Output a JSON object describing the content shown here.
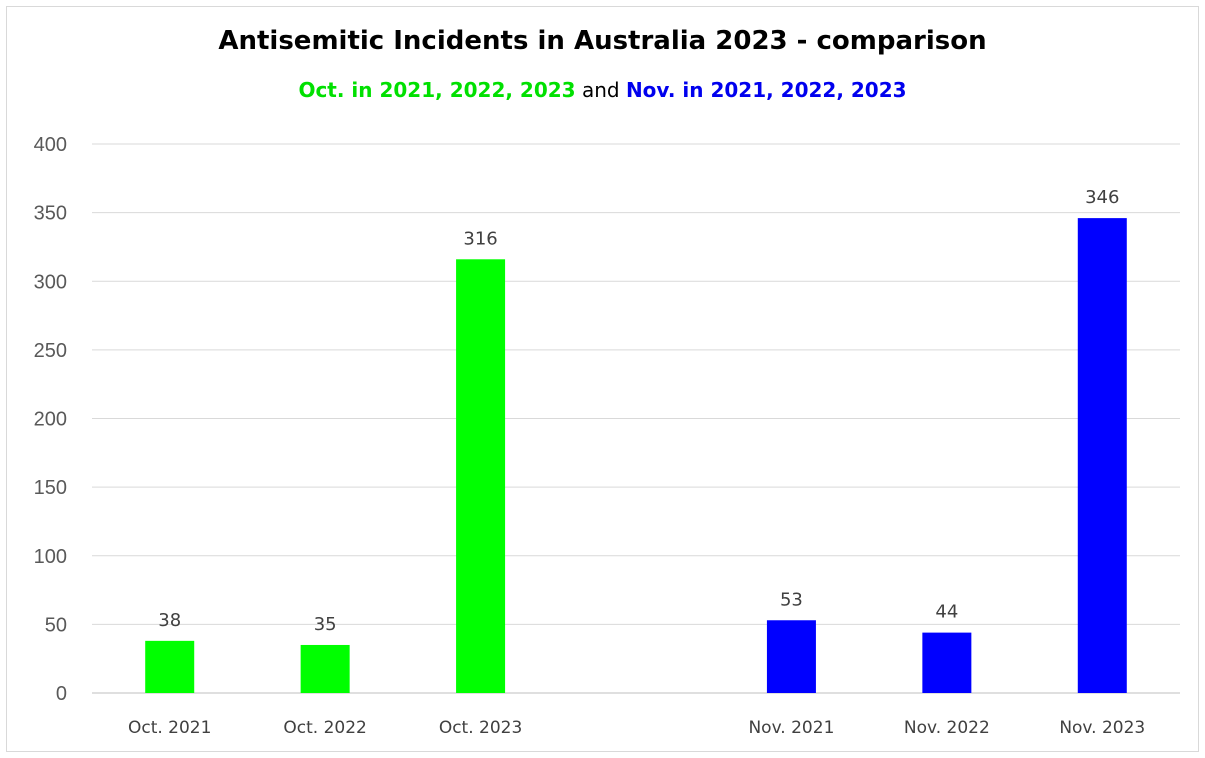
{
  "chart_data": {
    "type": "bar",
    "title": "Antisemitic Incidents in Australia 2023 - comparison",
    "subtitle": {
      "part_a": "Oct. in 2021, 2022, 2023",
      "part_b": " and ",
      "part_c": "Nov. in 2021, 2022, 2023",
      "color_a": "#00e000",
      "color_c": "#0000ee"
    },
    "categories": [
      "Oct. 2021",
      "Oct. 2022",
      "Oct. 2023",
      "",
      "Nov. 2021",
      "Nov. 2022",
      "Nov. 2023"
    ],
    "values": [
      38,
      35,
      316,
      null,
      53,
      44,
      346
    ],
    "bar_colors": [
      "#00ff00",
      "#00ff00",
      "#00ff00",
      null,
      "#0000ff",
      "#0000ff",
      "#0000ff"
    ],
    "data_labels": [
      "38",
      "35",
      "316",
      "",
      "53",
      "44",
      "346"
    ],
    "ylim": [
      0,
      400
    ],
    "yticks": [
      0,
      50,
      100,
      150,
      200,
      250,
      300,
      350,
      400
    ],
    "xlabel": "",
    "ylabel": "",
    "grid": true,
    "legend": "none"
  }
}
